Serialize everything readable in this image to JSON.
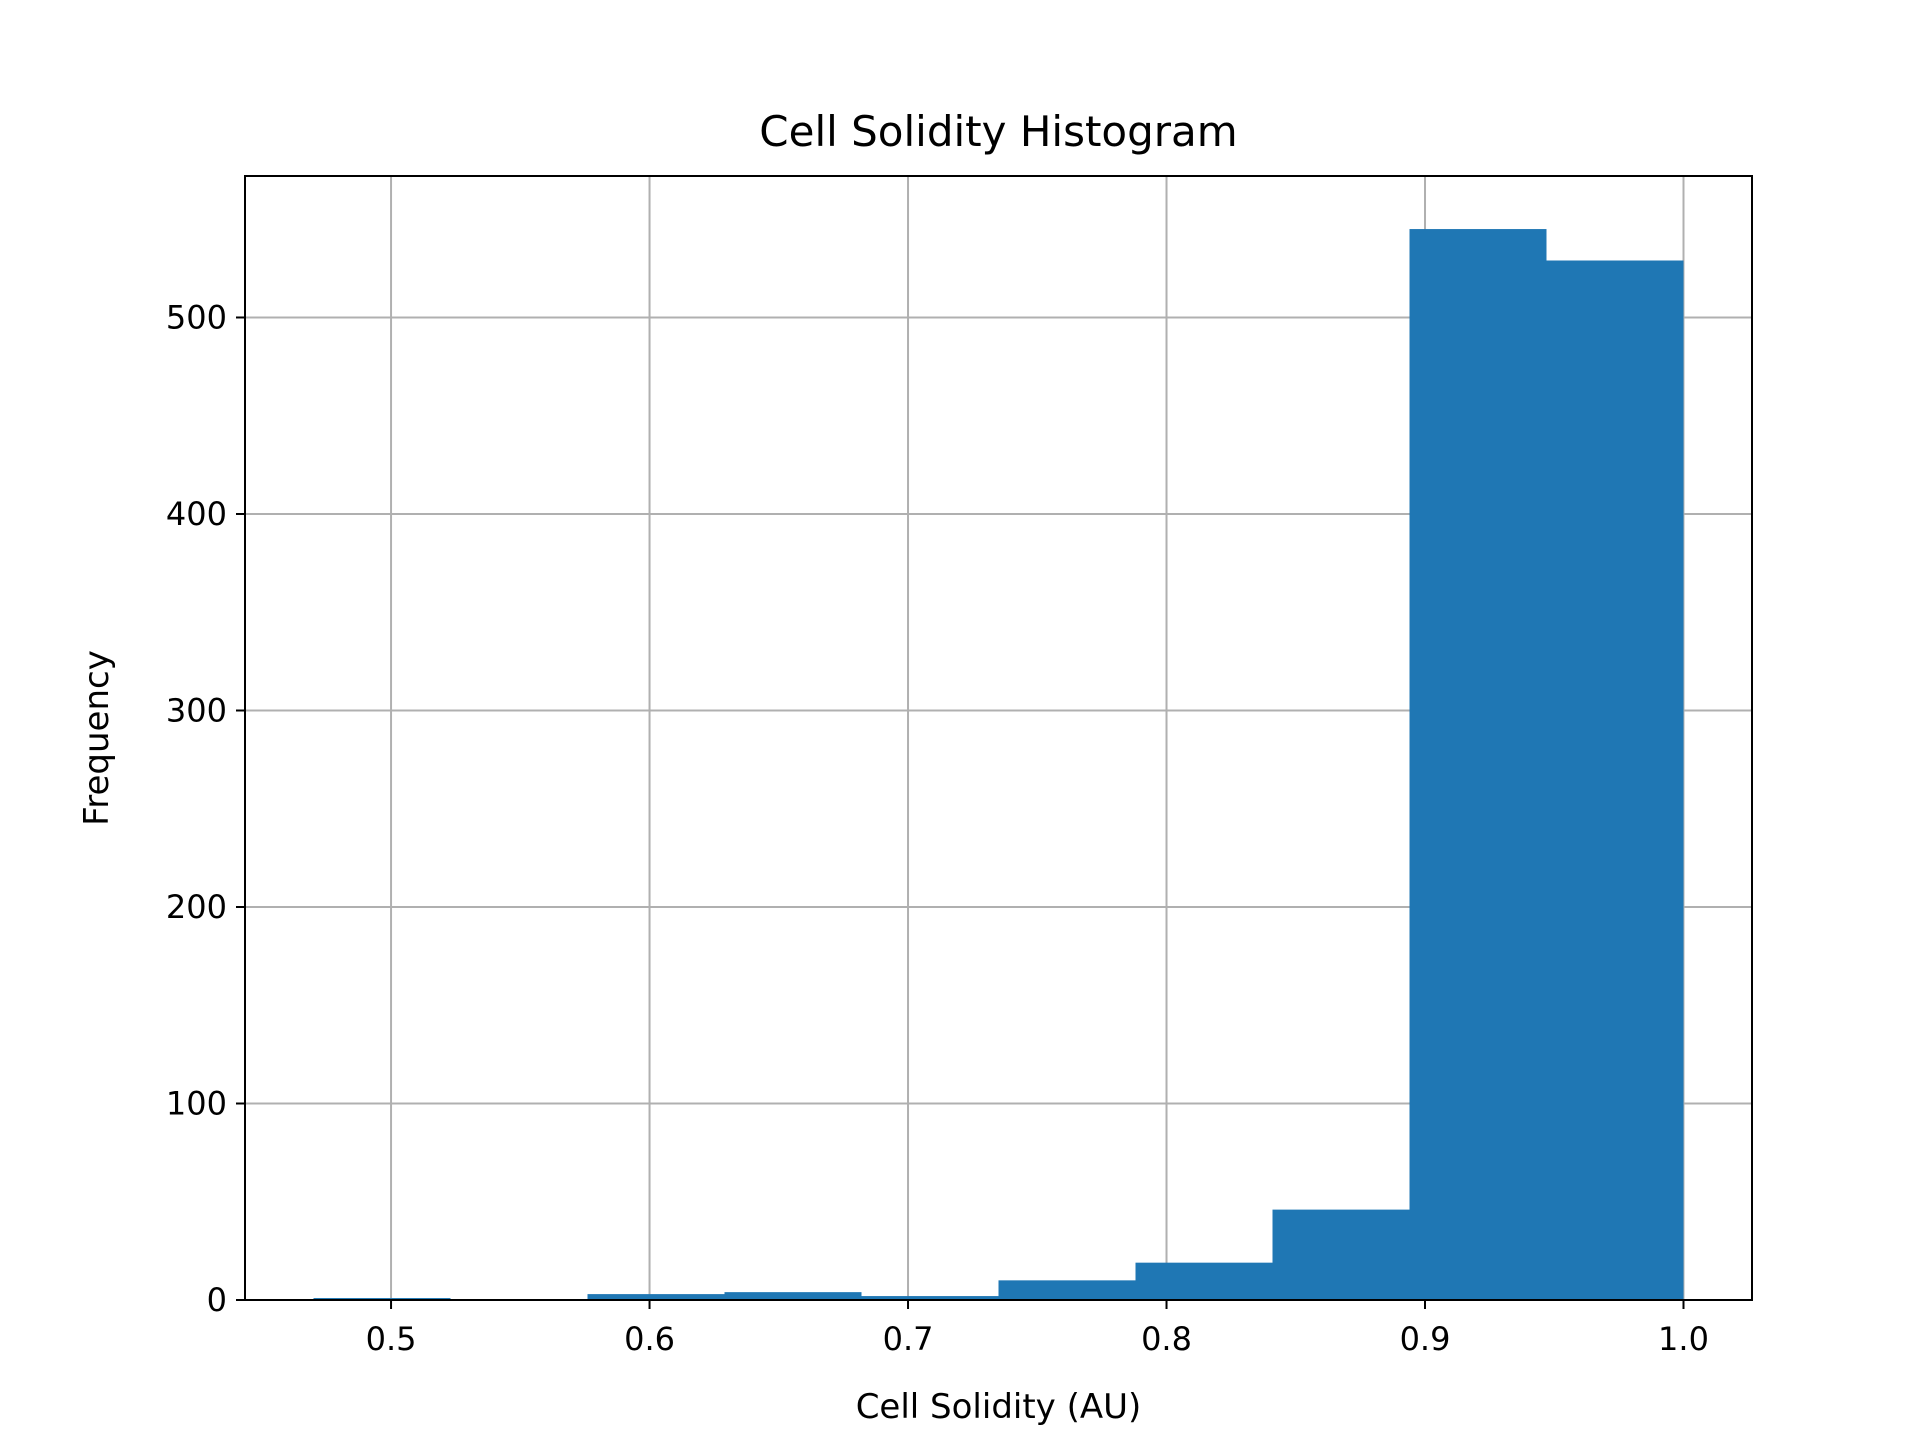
{
  "chart_data": {
    "type": "bar",
    "title": "Cell Solidity Histogram",
    "xlabel": "Cell Solidity (AU)",
    "ylabel": "Frequency",
    "xlim": [
      0.4435,
      1.0265
    ],
    "ylim": [
      0,
      572
    ],
    "xticks": [
      0.5,
      0.6,
      0.7,
      0.8,
      0.9,
      1.0
    ],
    "xtick_labels": [
      "0.5",
      "0.6",
      "0.7",
      "0.8",
      "0.9",
      "1.0"
    ],
    "yticks": [
      0,
      100,
      200,
      300,
      400,
      500
    ],
    "ytick_labels": [
      "0",
      "100",
      "200",
      "300",
      "400",
      "500"
    ],
    "grid": true,
    "color": "#1f77b4",
    "bins": [
      {
        "x0": 0.47,
        "x1": 0.523,
        "count": 1
      },
      {
        "x0": 0.523,
        "x1": 0.576,
        "count": 0
      },
      {
        "x0": 0.576,
        "x1": 0.629,
        "count": 3
      },
      {
        "x0": 0.629,
        "x1": 0.682,
        "count": 4
      },
      {
        "x0": 0.682,
        "x1": 0.735,
        "count": 2
      },
      {
        "x0": 0.735,
        "x1": 0.788,
        "count": 10
      },
      {
        "x0": 0.788,
        "x1": 0.841,
        "count": 19
      },
      {
        "x0": 0.841,
        "x1": 0.894,
        "count": 46
      },
      {
        "x0": 0.894,
        "x1": 0.947,
        "count": 545
      },
      {
        "x0": 0.947,
        "x1": 1.0,
        "count": 529
      }
    ]
  }
}
